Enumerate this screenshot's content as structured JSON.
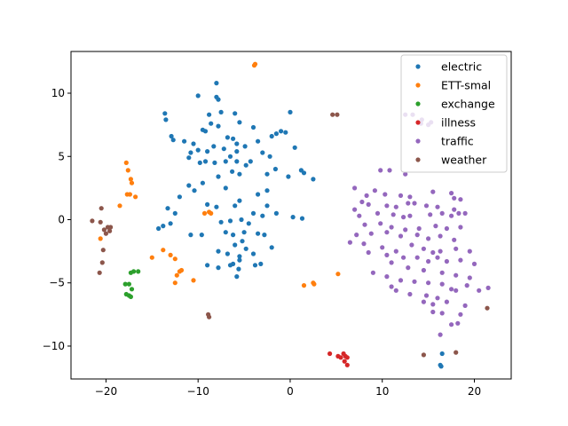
{
  "chart_data": {
    "type": "scatter",
    "title": "",
    "xlabel": "",
    "ylabel": "",
    "xlim": [
      -23.8,
      24.0
    ],
    "ylim": [
      -12.6,
      13.3
    ],
    "xticks": [
      -20,
      -10,
      0,
      10,
      20
    ],
    "xtick_labels": [
      "−20",
      "−10",
      "0",
      "10",
      "20"
    ],
    "yticks": [
      -10,
      -5,
      0,
      5,
      10
    ],
    "ytick_labels": [
      "−10",
      "−5",
      "0",
      "5",
      "10"
    ],
    "grid": false,
    "legend_position": "top-right",
    "series": [
      {
        "name": "electric",
        "color": "#1f77b4",
        "points": [
          [
            -8.0,
            10.8
          ],
          [
            -8.0,
            9.7
          ],
          [
            -7.8,
            9.5
          ],
          [
            -10.0,
            9.8
          ],
          [
            -13.6,
            8.4
          ],
          [
            -13.5,
            7.9
          ],
          [
            -8.8,
            8.3
          ],
          [
            -7.5,
            8.5
          ],
          [
            -6.0,
            8.4
          ],
          [
            -5.5,
            7.7
          ],
          [
            -4.0,
            7.3
          ],
          [
            -3.5,
            6.2
          ],
          [
            0.0,
            8.5
          ],
          [
            -1.5,
            6.8
          ],
          [
            -2.0,
            6.6
          ],
          [
            -1.0,
            7.0
          ],
          [
            -0.5,
            6.9
          ],
          [
            0.5,
            5.7
          ],
          [
            -9.5,
            7.1
          ],
          [
            -9.2,
            7.0
          ],
          [
            -8.6,
            7.6
          ],
          [
            -7.8,
            7.4
          ],
          [
            -6.8,
            6.5
          ],
          [
            -6.2,
            6.4
          ],
          [
            -5.8,
            6.0
          ],
          [
            -12.9,
            6.6
          ],
          [
            -12.7,
            6.3
          ],
          [
            -11.5,
            6.2
          ],
          [
            -10.5,
            6.0
          ],
          [
            -10.8,
            5.3
          ],
          [
            -10.0,
            5.5
          ],
          [
            -9.0,
            5.4
          ],
          [
            -8.3,
            5.8
          ],
          [
            -7.2,
            5.6
          ],
          [
            -5.8,
            5.4
          ],
          [
            -4.9,
            5.8
          ],
          [
            -3.0,
            5.3
          ],
          [
            -2.2,
            5.0
          ],
          [
            -1.6,
            4.0
          ],
          [
            -4.8,
            4.3
          ],
          [
            -5.8,
            4.6
          ],
          [
            -6.5,
            5.0
          ],
          [
            -7.0,
            4.6
          ],
          [
            -8.2,
            4.5
          ],
          [
            -9.2,
            4.6
          ],
          [
            -9.8,
            4.5
          ],
          [
            -11.0,
            4.9
          ],
          [
            -4.3,
            4.6
          ],
          [
            -6.3,
            3.8
          ],
          [
            -5.5,
            3.6
          ],
          [
            -7.8,
            3.4
          ],
          [
            -2.5,
            3.6
          ],
          [
            -0.2,
            3.4
          ],
          [
            1.5,
            3.7
          ],
          [
            2.5,
            3.2
          ],
          [
            1.2,
            3.9
          ],
          [
            -10.4,
            2.3
          ],
          [
            -11.0,
            2.7
          ],
          [
            -12.0,
            1.8
          ],
          [
            -9.5,
            2.9
          ],
          [
            -7.0,
            2.5
          ],
          [
            -3.5,
            2.0
          ],
          [
            -2.5,
            2.3
          ],
          [
            -5.5,
            1.5
          ],
          [
            -8.0,
            1.0
          ],
          [
            -9.0,
            1.2
          ],
          [
            -6.0,
            1.1
          ],
          [
            -2.5,
            1.1
          ],
          [
            -13.3,
            0.9
          ],
          [
            -12.5,
            0.5
          ],
          [
            -4.0,
            0.5
          ],
          [
            -3.0,
            0.3
          ],
          [
            -1.5,
            0.5
          ],
          [
            0.3,
            0.2
          ],
          [
            1.3,
            0.1
          ],
          [
            -13.8,
            -0.5
          ],
          [
            -14.3,
            -0.7
          ],
          [
            -13.0,
            -0.3
          ],
          [
            -7.5,
            -0.2
          ],
          [
            -6.5,
            -0.1
          ],
          [
            -5.3,
            0.0
          ],
          [
            -4.5,
            -0.3
          ],
          [
            -10.8,
            -1.2
          ],
          [
            -9.6,
            -1.2
          ],
          [
            -7.0,
            -1.0
          ],
          [
            -6.2,
            -1.2
          ],
          [
            -5.0,
            -1.0
          ],
          [
            -3.5,
            -1.1
          ],
          [
            -2.8,
            -1.2
          ],
          [
            -5.2,
            -1.7
          ],
          [
            -6.0,
            -2.0
          ],
          [
            -4.8,
            -2.3
          ],
          [
            -2.0,
            -2.2
          ],
          [
            -7.8,
            -2.5
          ],
          [
            -6.8,
            -2.7
          ],
          [
            -5.5,
            -2.9
          ],
          [
            -4.0,
            -2.7
          ],
          [
            -5.5,
            -3.2
          ],
          [
            -6.2,
            -3.5
          ],
          [
            -7.8,
            -3.8
          ],
          [
            -6.5,
            -3.6
          ],
          [
            -3.2,
            -3.5
          ],
          [
            -3.8,
            -3.6
          ],
          [
            -9.0,
            -3.6
          ],
          [
            -5.8,
            -4.5
          ],
          [
            -5.6,
            -3.9
          ],
          [
            16.5,
            -10.6
          ],
          [
            16.3,
            -11.5
          ],
          [
            16.4,
            -11.6
          ]
        ]
      },
      {
        "name": "ETT-smal",
        "color": "#ff7f0e",
        "points": [
          [
            -3.8,
            12.3
          ],
          [
            -3.9,
            12.2
          ],
          [
            -17.8,
            4.5
          ],
          [
            -17.6,
            3.9
          ],
          [
            -17.3,
            3.2
          ],
          [
            -17.2,
            2.9
          ],
          [
            -17.7,
            2.0
          ],
          [
            -17.4,
            2.0
          ],
          [
            -16.8,
            1.8
          ],
          [
            -18.5,
            1.1
          ],
          [
            -9.3,
            0.5
          ],
          [
            -8.8,
            0.6
          ],
          [
            -8.6,
            0.5
          ],
          [
            -20.6,
            -1.5
          ],
          [
            -15.0,
            -3.0
          ],
          [
            -13.8,
            -2.4
          ],
          [
            -13.0,
            -2.8
          ],
          [
            -12.5,
            -3.1
          ],
          [
            -12.0,
            -4.1
          ],
          [
            -11.8,
            -4.0
          ],
          [
            -12.3,
            -4.4
          ],
          [
            -12.5,
            -5.0
          ],
          [
            -10.5,
            -4.8
          ],
          [
            1.5,
            -5.2
          ],
          [
            2.5,
            -5.0
          ],
          [
            2.6,
            -5.1
          ],
          [
            5.2,
            -4.3
          ]
        ]
      },
      {
        "name": "exchange",
        "color": "#2ca02c",
        "points": [
          [
            -17.3,
            -4.2
          ],
          [
            -17.0,
            -4.1
          ],
          [
            -16.5,
            -4.1
          ],
          [
            -17.9,
            -5.1
          ],
          [
            -17.5,
            -5.1
          ],
          [
            -17.2,
            -5.5
          ],
          [
            -17.8,
            -5.9
          ],
          [
            -17.5,
            -6.0
          ],
          [
            -17.3,
            -6.1
          ]
        ]
      },
      {
        "name": "illness",
        "color": "#d62728",
        "points": [
          [
            4.3,
            -10.6
          ],
          [
            5.2,
            -10.8
          ],
          [
            5.8,
            -10.6
          ],
          [
            6.0,
            -10.8
          ],
          [
            6.2,
            -10.9
          ],
          [
            5.9,
            -11.2
          ],
          [
            6.2,
            -11.5
          ],
          [
            5.5,
            -10.9
          ]
        ]
      },
      {
        "name": "traffic",
        "color": "#9467bd",
        "points": [
          [
            12.5,
            8.3
          ],
          [
            13.3,
            8.3
          ],
          [
            14.2,
            7.6
          ],
          [
            15.0,
            7.5
          ],
          [
            15.3,
            7.7
          ],
          [
            14.3,
            7.9
          ],
          [
            9.8,
            3.9
          ],
          [
            10.8,
            3.9
          ],
          [
            12.5,
            3.6
          ],
          [
            7.0,
            2.5
          ],
          [
            8.3,
            1.9
          ],
          [
            9.2,
            2.3
          ],
          [
            10.3,
            2.0
          ],
          [
            12.0,
            1.9
          ],
          [
            13.0,
            1.8
          ],
          [
            15.5,
            2.2
          ],
          [
            17.5,
            2.1
          ],
          [
            18.5,
            1.6
          ],
          [
            17.8,
            1.7
          ],
          [
            7.8,
            1.4
          ],
          [
            8.5,
            1.2
          ],
          [
            10.5,
            1.1
          ],
          [
            11.5,
            1.0
          ],
          [
            12.8,
            1.3
          ],
          [
            13.5,
            1.3
          ],
          [
            14.8,
            1.1
          ],
          [
            16.0,
            1.0
          ],
          [
            17.8,
            0.8
          ],
          [
            18.3,
            0.5
          ],
          [
            7.0,
            0.8
          ],
          [
            7.5,
            0.3
          ],
          [
            9.5,
            0.5
          ],
          [
            11.2,
            0.4
          ],
          [
            12.3,
            0.2
          ],
          [
            13.0,
            0.3
          ],
          [
            15.2,
            0.4
          ],
          [
            16.5,
            0.5
          ],
          [
            17.5,
            0.3
          ],
          [
            19.0,
            0.5
          ],
          [
            8.1,
            -0.4
          ],
          [
            9.8,
            -0.3
          ],
          [
            11.0,
            -0.6
          ],
          [
            12.5,
            -0.8
          ],
          [
            14.0,
            -0.7
          ],
          [
            15.8,
            -0.5
          ],
          [
            17.0,
            -0.7
          ],
          [
            18.5,
            -0.6
          ],
          [
            7.2,
            -1.2
          ],
          [
            8.8,
            -1.1
          ],
          [
            10.5,
            -1.0
          ],
          [
            12.0,
            -1.3
          ],
          [
            13.8,
            -1.2
          ],
          [
            15.0,
            -1.5
          ],
          [
            16.3,
            -1.3
          ],
          [
            17.8,
            -1.6
          ],
          [
            6.5,
            -1.8
          ],
          [
            8.0,
            -1.9
          ],
          [
            10.0,
            -2.2
          ],
          [
            11.5,
            -2.5
          ],
          [
            13.2,
            -2.0
          ],
          [
            14.5,
            -2.3
          ],
          [
            15.5,
            -2.6
          ],
          [
            16.3,
            -2.5
          ],
          [
            18.0,
            -2.3
          ],
          [
            19.5,
            -2.5
          ],
          [
            8.5,
            -2.6
          ],
          [
            10.5,
            -2.8
          ],
          [
            12.3,
            -3.0
          ],
          [
            13.8,
            -3.0
          ],
          [
            15.0,
            -3.3
          ],
          [
            16.0,
            -3.0
          ],
          [
            17.0,
            -3.3
          ],
          [
            18.5,
            -3.2
          ],
          [
            20.0,
            -3.5
          ],
          [
            11.0,
            -3.4
          ],
          [
            12.8,
            -3.8
          ],
          [
            14.5,
            -4.0
          ],
          [
            16.5,
            -4.2
          ],
          [
            18.0,
            -4.4
          ],
          [
            19.5,
            -4.6
          ],
          [
            9.0,
            -4.2
          ],
          [
            10.5,
            -4.5
          ],
          [
            12.0,
            -4.8
          ],
          [
            13.5,
            -4.9
          ],
          [
            15.0,
            -5.0
          ],
          [
            16.5,
            -5.1
          ],
          [
            17.5,
            -5.5
          ],
          [
            19.2,
            -5.2
          ],
          [
            11.0,
            -5.3
          ],
          [
            11.5,
            -5.6
          ],
          [
            13.0,
            -5.9
          ],
          [
            14.8,
            -6.0
          ],
          [
            16.0,
            -6.2
          ],
          [
            18.0,
            -5.6
          ],
          [
            20.5,
            -5.6
          ],
          [
            21.5,
            -5.4
          ],
          [
            14.5,
            -6.5
          ],
          [
            15.5,
            -6.7
          ],
          [
            17.0,
            -6.5
          ],
          [
            19.0,
            -6.8
          ],
          [
            15.5,
            -7.3
          ],
          [
            16.5,
            -7.4
          ],
          [
            18.5,
            -7.5
          ],
          [
            17.5,
            -8.3
          ],
          [
            18.2,
            -8.2
          ],
          [
            16.3,
            -9.1
          ]
        ]
      },
      {
        "name": "weather",
        "color": "#8c564b",
        "points": [
          [
            4.6,
            8.3
          ],
          [
            5.1,
            8.3
          ],
          [
            -20.5,
            0.9
          ],
          [
            -21.5,
            -0.1
          ],
          [
            -20.6,
            -0.2
          ],
          [
            -20.2,
            -0.8
          ],
          [
            -19.8,
            -0.6
          ],
          [
            -19.6,
            -0.9
          ],
          [
            -19.5,
            -0.6
          ],
          [
            -20.0,
            -1.1
          ],
          [
            -20.3,
            -2.4
          ],
          [
            -20.4,
            -3.4
          ],
          [
            -20.7,
            -4.2
          ],
          [
            -8.9,
            -7.5
          ],
          [
            -8.8,
            -7.7
          ],
          [
            21.4,
            -7.0
          ],
          [
            14.5,
            -10.7
          ],
          [
            18.0,
            -10.5
          ]
        ]
      }
    ]
  }
}
